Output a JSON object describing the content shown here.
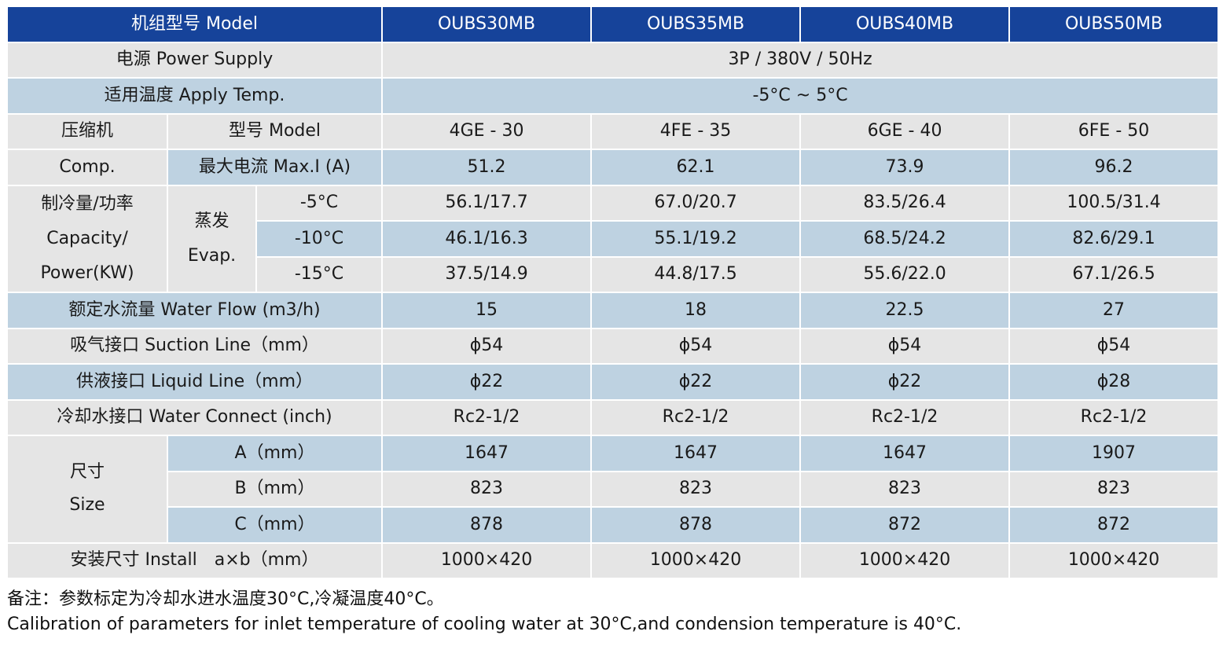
{
  "header": {
    "model_label": "机组型号 Model",
    "models": [
      "OUBS30MB",
      "OUBS35MB",
      "OUBS40MB",
      "OUBS50MB"
    ]
  },
  "power_supply": {
    "label": "电源 Power Supply",
    "value": "3P / 380V / 50Hz"
  },
  "apply_temp": {
    "label": "适用温度 Apply Temp.",
    "value": "-5°C ~ 5°C"
  },
  "compressor": {
    "group_cn": "压缩机",
    "group_en": "Comp.",
    "model_label": "型号 Model",
    "models": [
      "4GE - 30",
      "4FE - 35",
      "6GE - 40",
      "6FE - 50"
    ],
    "current_label": "最大电流 Max.I (A)",
    "currents": [
      "51.2",
      "62.1",
      "73.9",
      "96.2"
    ]
  },
  "capacity": {
    "group_line1": "制冷量/功率",
    "group_line2": "Capacity/",
    "group_line3": "Power(KW)",
    "evap_cn": "蒸发",
    "evap_en": "Evap.",
    "rows": [
      {
        "temp": "-5°C",
        "values": [
          "56.1/17.7",
          "67.0/20.7",
          "83.5/26.4",
          "100.5/31.4"
        ]
      },
      {
        "temp": "-10°C",
        "values": [
          "46.1/16.3",
          "55.1/19.2",
          "68.5/24.2",
          "82.6/29.1"
        ]
      },
      {
        "temp": "-15°C",
        "values": [
          "37.5/14.9",
          "44.8/17.5",
          "55.6/22.0",
          "67.1/26.5"
        ]
      }
    ]
  },
  "water_flow": {
    "label": "额定水流量 Water Flow (m3/h)",
    "values": [
      "15",
      "18",
      "22.5",
      "27"
    ]
  },
  "suction": {
    "label": "吸气接口 Suction Line（mm）",
    "values": [
      "ϕ54",
      "ϕ54",
      "ϕ54",
      "ϕ54"
    ]
  },
  "liquid": {
    "label": "供液接口 Liquid Line（mm）",
    "values": [
      "ϕ22",
      "ϕ22",
      "ϕ22",
      "ϕ28"
    ]
  },
  "water_connect": {
    "label": "冷却水接口 Water Connect (inch)",
    "values": [
      "Rc2-1/2",
      "Rc2-1/2",
      "Rc2-1/2",
      "Rc2-1/2"
    ]
  },
  "size": {
    "group_cn": "尺寸",
    "group_en": "Size",
    "rows": [
      {
        "label": "A（mm）",
        "values": [
          "1647",
          "1647",
          "1647",
          "1907"
        ]
      },
      {
        "label": "B（mm）",
        "values": [
          "823",
          "823",
          "823",
          "823"
        ]
      },
      {
        "label": "C（mm）",
        "values": [
          "878",
          "878",
          "872",
          "872"
        ]
      }
    ]
  },
  "install": {
    "label": "安装尺寸 Install　a×b（mm）",
    "values": [
      "1000×420",
      "1000×420",
      "1000×420",
      "1000×420"
    ]
  },
  "notes": {
    "cn": "备注：参数标定为冷却水进水温度30°C,冷凝温度40°C。",
    "en": "Calibration of parameters for inlet temperature of cooling water at 30°C,and condension temperature is 40°C."
  },
  "colors": {
    "header": "#16439a",
    "row_gray": "#e5e5e5",
    "row_blue": "#bed2e1"
  }
}
